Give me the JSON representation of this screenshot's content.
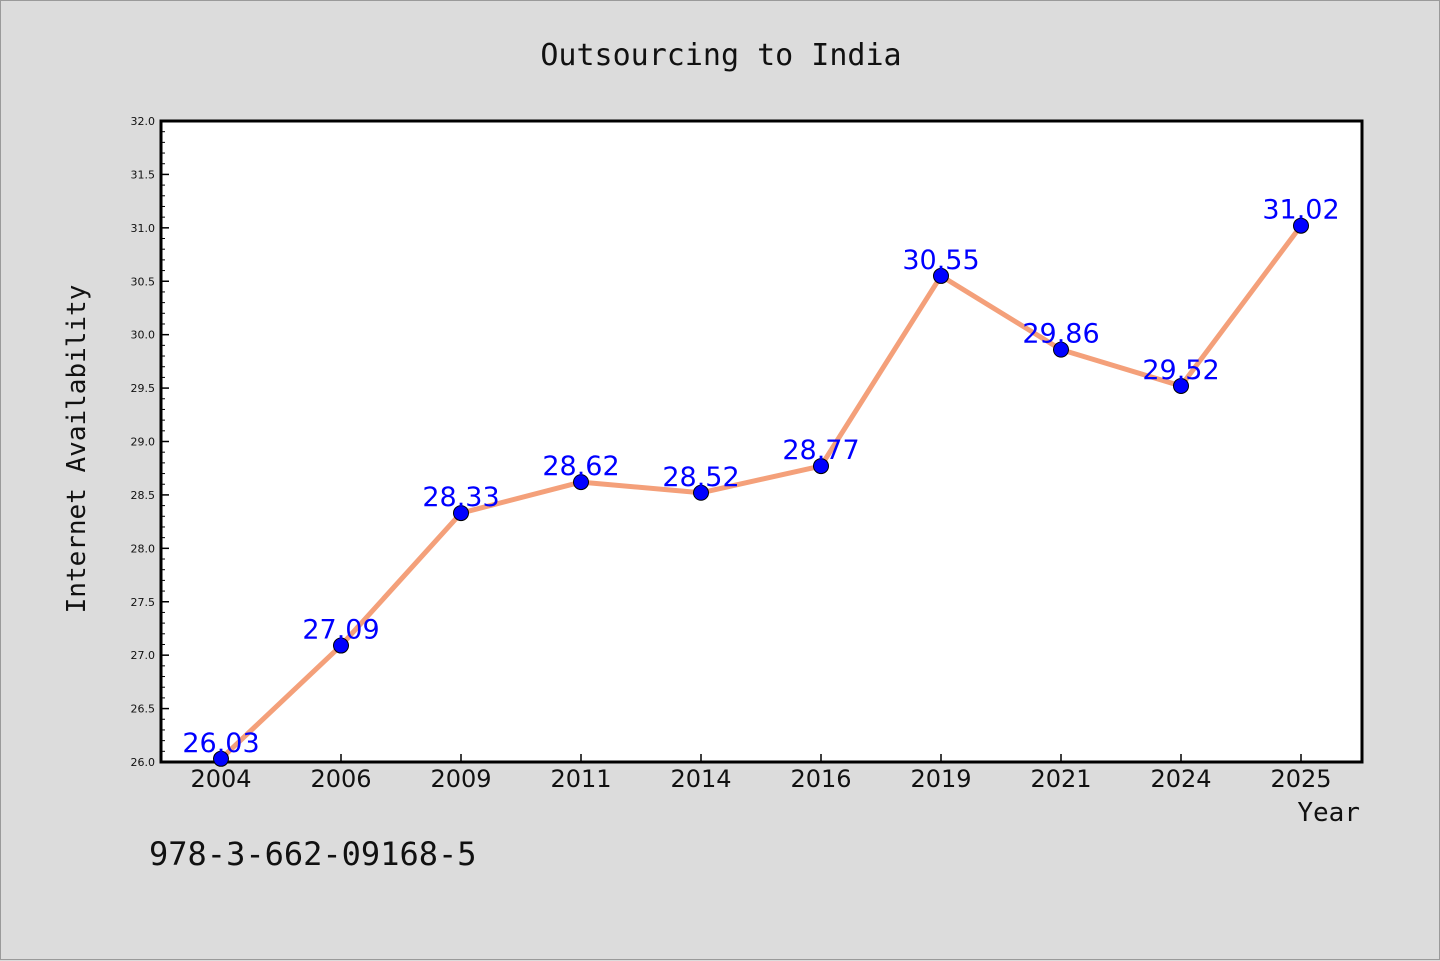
{
  "chart_data": {
    "type": "line",
    "title": "Outsourcing to India",
    "xlabel": "Year",
    "ylabel": "Internet Availability",
    "categories": [
      "2004",
      "2006",
      "2009",
      "2011",
      "2014",
      "2016",
      "2019",
      "2021",
      "2024",
      "2025"
    ],
    "values": [
      26.03,
      27.09,
      28.33,
      28.62,
      28.52,
      28.77,
      30.55,
      29.86,
      29.52,
      31.02
    ],
    "value_labels": [
      "26.03",
      "27.09",
      "28.33",
      "28.62",
      "28.52",
      "28.77",
      "30.55",
      "29.86",
      "29.52",
      "31.02"
    ],
    "ylim": [
      26.0,
      32.0
    ],
    "yticks": [
      "26.0",
      "26.5",
      "27.0",
      "27.5",
      "28.0",
      "28.5",
      "29.0",
      "29.5",
      "30.0",
      "30.5",
      "31.0",
      "31.5",
      "32.0"
    ],
    "grid": false,
    "line_color": "#f4a07a",
    "marker_color": "#0000ff",
    "label_color": "#0000ff"
  },
  "annotation": "978-3-662-09168-5"
}
